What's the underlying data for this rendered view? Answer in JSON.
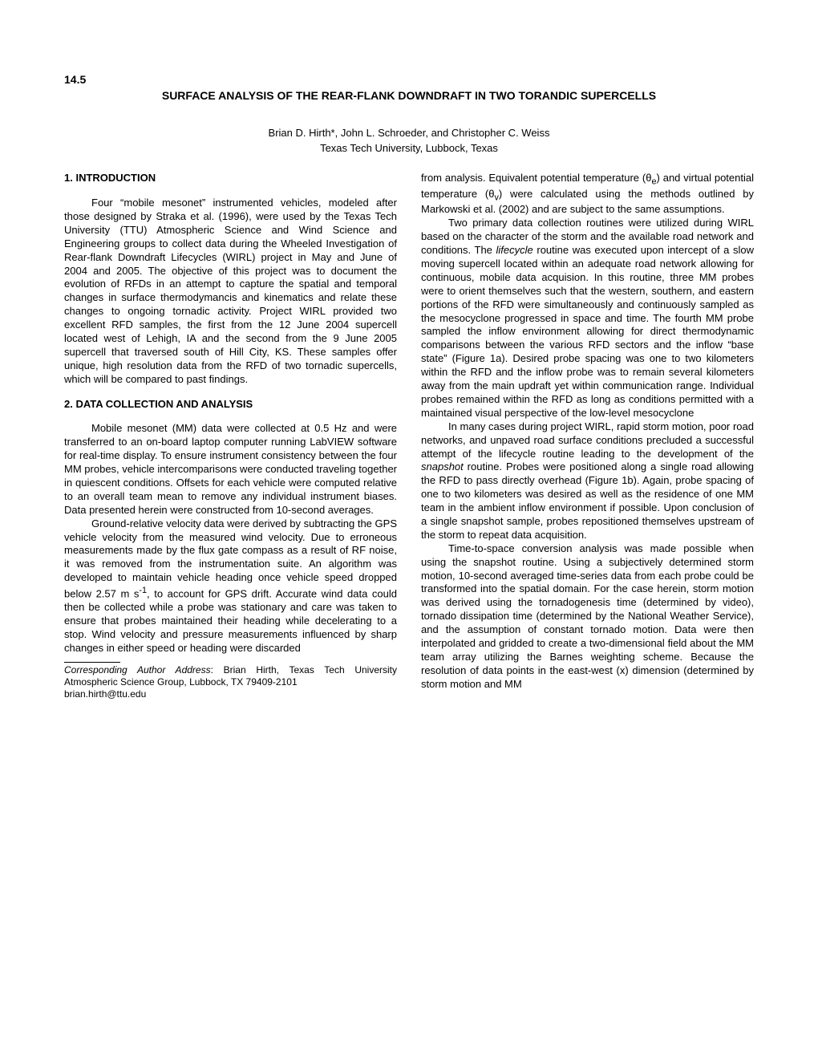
{
  "paper_number": "14.5",
  "title": "SURFACE ANALYSIS OF THE REAR-FLANK DOWNDRAFT IN TWO TORANDIC SUPERCELLS",
  "authors": "Brian D. Hirth*, John L. Schroeder, and Christopher C. Weiss",
  "affiliation": "Texas Tech University, Lubbock, Texas",
  "sec1_head": "1. INTRODUCTION",
  "sec1_p1": "Four “mobile mesonet” instrumented vehicles, modeled after those designed by Straka et al. (1996), were used by the Texas Tech University (TTU) Atmospheric Science and Wind Science and Engineering groups to collect data during the Wheeled Investigation of Rear-flank Downdraft Lifecycles (WIRL) project in May and June of 2004 and 2005.  The objective of this project was to document the evolution of RFDs in an attempt to capture the spatial and temporal changes in surface thermodymancis and kinematics and relate these changes to ongoing tornadic activity.  Project WIRL provided two excellent RFD samples, the first from the 12 June 2004 supercell located west of Lehigh, IA and the second from the 9 June 2005 supercell that traversed south of Hill City, KS.  These samples offer unique, high resolution data from the RFD of two tornadic supercells, which will be compared to past findings.",
  "sec2_head": "2. DATA COLLECTION AND ANALYSIS",
  "sec2_p1": "Mobile mesonet (MM) data were collected at 0.5 Hz and were  transferred to an on-board laptop computer running LabVIEW software for real-time display.  To ensure instrument consistency between the four MM probes, vehicle intercomparisons were conducted traveling together in quiescent conditions.  Offsets for each vehicle were computed relative to an overall team mean to remove any individual instrument biases.  Data presented herein were constructed from 10-second averages.",
  "sec2_p2_a": "Ground-relative velocity data were derived by subtracting the GPS vehicle velocity from the measured wind velocity.  Due to erroneous measurements made by the flux gate compass as a result of RF noise, it was removed from the instrumentation suite.  An algorithm was developed to maintain vehicle heading once vehicle speed dropped below 2.57 m s",
  "sec2_p2_b": ", to account for GPS drift.  Accurate wind data could then be collected while a probe was stationary and care was taken to ensure that probes maintained their heading while decelerating to a stop.  Wind velocity and pressure measurements influenced by sharp changes in either speed or heading were discarded",
  "footnote_label": "Corresponding Author Address",
  "footnote_text": ": Brian Hirth, Texas Tech University Atmospheric Science Group, Lubbock, TX 79409-2101",
  "footnote_email": "brian.hirth@ttu.edu",
  "col2_p1_a": "from analysis.  Equivalent potential temperature (θ",
  "col2_p1_b": ") and virtual potential temperature (θ",
  "col2_p1_c": ") were calculated using the methods outlined by Markowski et al. (2002) and are subject to the same assumptions.",
  "col2_p2_a": "Two primary data collection routines were utilized during WIRL based on the character of the storm and the available road network and conditions.  The ",
  "col2_p2_italic1": "lifecycle",
  "col2_p2_b": " routine was executed upon intercept of a slow moving supercell located within an adequate road network allowing for continuous, mobile data acquision.  In this routine, three MM probes were to orient themselves such that the western, southern, and eastern portions of the RFD were simultaneously and continuously sampled as the mesocyclone progressed in space and time.  The fourth MM probe sampled the inflow environment allowing for direct thermodynamic comparisons between the various RFD sectors and the inflow “base state” (Figure 1a).  Desired probe spacing was one to two kilometers within the RFD and the inflow probe was to remain several kilometers away from the main updraft yet within communication range.  Individual probes remained within the RFD as long as conditions permitted with a maintained visual perspective of the low-level mesocyclone",
  "col2_p3_a": "In many cases during project WIRL, rapid storm motion, poor road networks, and unpaved road surface conditions precluded a successful attempt of the lifecycle routine leading to the development of the ",
  "col2_p3_italic1": "snapshot",
  "col2_p3_b": " routine.  Probes were positioned along a single road allowing the RFD to pass directly overhead (Figure 1b). Again, probe spacing of one to two kilometers was desired as well as the residence of one MM team in the ambient inflow environment if possible. Upon conclusion of a single snapshot sample, probes repositioned themselves upstream of the storm to repeat data acquisition.",
  "col2_p4": "Time-to-space conversion analysis was made possible when using the snapshot routine.  Using a subjectively determined storm motion, 10-second averaged time-series data from each probe could be transformed into the spatial domain.  For the case herein, storm motion was derived using the tornadogenesis time (determined by video), tornado dissipation time (determined by the National Weather Service), and the assumption of constant tornado motion.  Data were then interpolated and gridded to create a two-dimensional field about the MM team array utilizing the Barnes weighting scheme.  Because the resolution of data points in the east-west (x) dimension (determined by storm motion and MM"
}
